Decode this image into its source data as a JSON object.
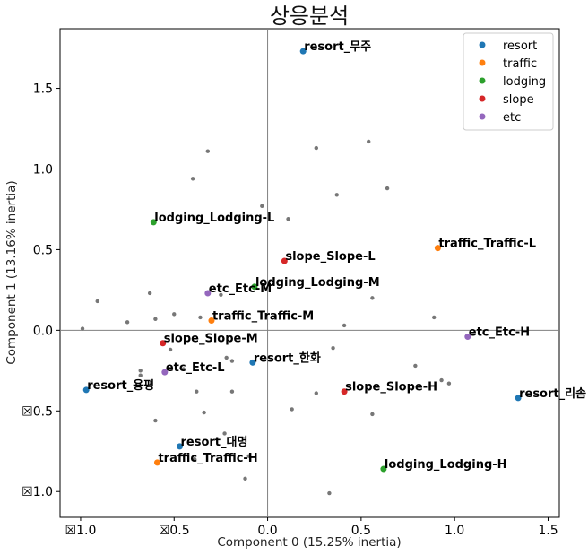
{
  "chart_data": {
    "type": "scatter",
    "title": "상응분석",
    "xlabel": "Component 0 (15.25% inertia)",
    "ylabel": "Component 1 (13.16% inertia)",
    "xlim": [
      -1.11,
      1.56
    ],
    "ylim": [
      -1.16,
      1.87
    ],
    "x_ticks": [
      -1.0,
      -0.5,
      0.0,
      0.5,
      1.0,
      1.5
    ],
    "x_tick_labels": [
      "☒1.0",
      "☒0.5",
      "0.0",
      "0.5",
      "1.0",
      "1.5"
    ],
    "y_ticks": [
      -1.0,
      -0.5,
      0.0,
      0.5,
      1.0,
      1.5
    ],
    "y_tick_labels": [
      "☒1.0",
      "☒0.5",
      "0.0",
      "0.5",
      "1.0",
      "1.5"
    ],
    "reference_lines": {
      "x": 0,
      "y": 0,
      "color": "#808080"
    },
    "grid": false,
    "legend_position": "top-right",
    "series": [
      {
        "name": "resort",
        "color": "#1f77b4",
        "points": [
          {
            "x": 0.19,
            "y": 1.73,
            "label": "resort_무주"
          },
          {
            "x": -0.97,
            "y": -0.37,
            "label": "resort_용평"
          },
          {
            "x": -0.08,
            "y": -0.2,
            "label": "resort_한화"
          },
          {
            "x": 1.34,
            "y": -0.42,
            "label": "resort_리솜"
          },
          {
            "x": -0.47,
            "y": -0.72,
            "label": "resort_대명"
          }
        ]
      },
      {
        "name": "traffic",
        "color": "#ff7f0e",
        "points": [
          {
            "x": 0.91,
            "y": 0.51,
            "label": "traffic_Traffic-L"
          },
          {
            "x": -0.3,
            "y": 0.06,
            "label": "traffic_Traffic-M"
          },
          {
            "x": -0.59,
            "y": -0.82,
            "label": "traffic_Traffic-H"
          }
        ]
      },
      {
        "name": "lodging",
        "color": "#2ca02c",
        "points": [
          {
            "x": -0.61,
            "y": 0.67,
            "label": "lodging_Lodging-L"
          },
          {
            "x": -0.07,
            "y": 0.27,
            "label": "lodging_Lodging-M"
          },
          {
            "x": 0.62,
            "y": -0.86,
            "label": "lodging_Lodging-H"
          }
        ]
      },
      {
        "name": "slope",
        "color": "#d62728",
        "points": [
          {
            "x": 0.09,
            "y": 0.43,
            "label": "slope_Slope-L"
          },
          {
            "x": -0.56,
            "y": -0.08,
            "label": "slope_Slope-M"
          },
          {
            "x": 0.41,
            "y": -0.38,
            "label": "slope_Slope-H"
          }
        ]
      },
      {
        "name": "etc",
        "color": "#9467bd",
        "points": [
          {
            "x": -0.32,
            "y": 0.23,
            "label": "etc_Etc-M"
          },
          {
            "x": -0.55,
            "y": -0.26,
            "label": "etc_Etc-L"
          },
          {
            "x": 1.07,
            "y": -0.04,
            "label": "etc_Etc-H"
          }
        ]
      }
    ],
    "background_points": {
      "color": "#777777",
      "points": [
        [
          0.54,
          1.17
        ],
        [
          0.26,
          1.13
        ],
        [
          -0.32,
          1.11
        ],
        [
          -0.4,
          0.94
        ],
        [
          0.64,
          0.88
        ],
        [
          0.37,
          0.84
        ],
        [
          -0.03,
          0.77
        ],
        [
          0.11,
          0.69
        ],
        [
          -0.63,
          0.23
        ],
        [
          -0.25,
          0.22
        ],
        [
          0.56,
          0.2
        ],
        [
          -0.91,
          0.18
        ],
        [
          -0.5,
          0.1
        ],
        [
          -0.6,
          0.07
        ],
        [
          -0.36,
          0.08
        ],
        [
          0.89,
          0.08
        ],
        [
          -0.75,
          0.05
        ],
        [
          0.41,
          0.03
        ],
        [
          -0.99,
          0.01
        ],
        [
          0.35,
          -0.11
        ],
        [
          -0.52,
          -0.12
        ],
        [
          -0.22,
          -0.17
        ],
        [
          -0.19,
          -0.19
        ],
        [
          0.79,
          -0.22
        ],
        [
          -0.68,
          -0.25
        ],
        [
          -0.45,
          -0.24
        ],
        [
          -0.68,
          -0.28
        ],
        [
          0.93,
          -0.31
        ],
        [
          0.97,
          -0.33
        ],
        [
          -0.38,
          -0.38
        ],
        [
          -0.19,
          -0.38
        ],
        [
          0.26,
          -0.39
        ],
        [
          -0.34,
          -0.51
        ],
        [
          0.13,
          -0.49
        ],
        [
          0.56,
          -0.52
        ],
        [
          -0.6,
          -0.56
        ],
        [
          -0.23,
          -0.64
        ],
        [
          -0.39,
          -0.8
        ],
        [
          -0.1,
          -0.78
        ],
        [
          -0.12,
          -0.92
        ],
        [
          0.33,
          -1.01
        ]
      ]
    }
  }
}
